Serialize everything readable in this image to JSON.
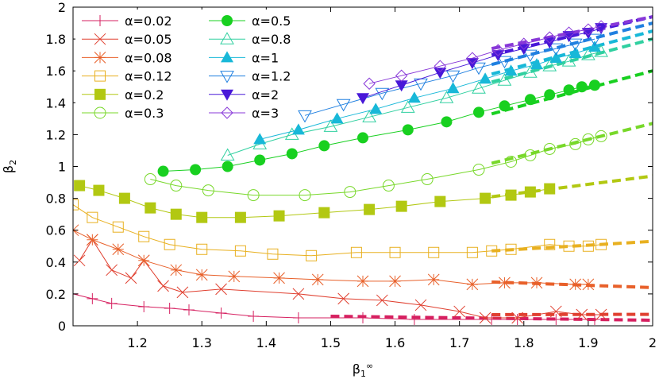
{
  "chart_data": {
    "type": "line",
    "xlabel": "β₁^∞",
    "ylabel": "β₂",
    "xlim": [
      1.1,
      2.0
    ],
    "ylim": [
      0,
      2.0
    ],
    "xticks": [
      1.2,
      1.3,
      1.4,
      1.5,
      1.6,
      1.7,
      1.8,
      1.9,
      2.0
    ],
    "xtick_labels": [
      "1.2",
      "1.3",
      "1.4",
      "1.5",
      "1.6",
      "1.7",
      "1.8",
      "1.9",
      "2"
    ],
    "yticks": [
      0,
      0.2,
      0.4,
      0.6,
      0.8,
      1.0,
      1.2,
      1.4,
      1.6,
      1.8,
      2.0
    ],
    "ytick_labels": [
      "0",
      "0.2",
      "0.4",
      "0.6",
      "0.8",
      "1",
      "1.2",
      "1.4",
      "1.6",
      "1.8",
      "2"
    ],
    "grid": false,
    "legend_position": "top-left, two columns",
    "series": [
      {
        "name": "α=0.02",
        "color": "#d62060",
        "marker": "plus",
        "x": [
          1.1,
          1.13,
          1.16,
          1.21,
          1.25,
          1.28,
          1.33,
          1.38,
          1.45,
          1.55,
          1.63,
          1.75,
          1.79,
          1.85,
          1.91
        ],
        "y": [
          0.2,
          0.17,
          0.14,
          0.12,
          0.11,
          0.1,
          0.08,
          0.06,
          0.05,
          0.05,
          0.04,
          0.04,
          0.04,
          0.04,
          0.04
        ],
        "fit": {
          "x": [
            1.5,
            2.0
          ],
          "y": [
            0.06,
            0.035
          ]
        }
      },
      {
        "name": "α=0.05",
        "color": "#e04030",
        "marker": "x",
        "x": [
          1.11,
          1.13,
          1.16,
          1.19,
          1.21,
          1.24,
          1.27,
          1.33,
          1.45,
          1.52,
          1.58,
          1.64,
          1.7,
          1.74,
          1.79,
          1.85,
          1.89,
          1.92
        ],
        "y": [
          0.41,
          0.54,
          0.35,
          0.3,
          0.41,
          0.25,
          0.21,
          0.23,
          0.2,
          0.17,
          0.16,
          0.13,
          0.09,
          0.05,
          0.05,
          0.09,
          0.07,
          0.07
        ],
        "fit": {
          "x": [
            1.75,
            2.0
          ],
          "y": [
            0.07,
            0.072
          ]
        }
      },
      {
        "name": "α=0.08",
        "color": "#e8602a",
        "marker": "star",
        "x": [
          1.1,
          1.13,
          1.17,
          1.21,
          1.26,
          1.3,
          1.35,
          1.42,
          1.48,
          1.55,
          1.6,
          1.66,
          1.72,
          1.77,
          1.82,
          1.88,
          1.9
        ],
        "y": [
          0.6,
          0.54,
          0.48,
          0.41,
          0.35,
          0.32,
          0.31,
          0.3,
          0.29,
          0.28,
          0.28,
          0.29,
          0.26,
          0.27,
          0.27,
          0.26,
          0.26
        ],
        "fit": {
          "x": [
            1.75,
            2.0
          ],
          "y": [
            0.275,
            0.24
          ]
        }
      },
      {
        "name": "α=0.12",
        "color": "#e8b020",
        "marker": "square-open",
        "x": [
          1.1,
          1.13,
          1.17,
          1.21,
          1.25,
          1.3,
          1.36,
          1.41,
          1.47,
          1.54,
          1.6,
          1.66,
          1.72,
          1.75,
          1.78,
          1.84,
          1.87,
          1.9,
          1.92
        ],
        "y": [
          0.76,
          0.68,
          0.62,
          0.56,
          0.51,
          0.48,
          0.47,
          0.45,
          0.44,
          0.46,
          0.46,
          0.46,
          0.46,
          0.47,
          0.48,
          0.51,
          0.5,
          0.5,
          0.51
        ],
        "fit": {
          "x": [
            1.75,
            2.0
          ],
          "y": [
            0.47,
            0.53
          ]
        }
      },
      {
        "name": "α=0.2",
        "color": "#b2c812",
        "marker": "square-filled",
        "x": [
          1.11,
          1.14,
          1.18,
          1.22,
          1.26,
          1.3,
          1.36,
          1.42,
          1.49,
          1.56,
          1.61,
          1.67,
          1.74,
          1.78,
          1.81,
          1.84
        ],
        "y": [
          0.88,
          0.85,
          0.8,
          0.74,
          0.7,
          0.68,
          0.68,
          0.69,
          0.71,
          0.73,
          0.75,
          0.78,
          0.8,
          0.82,
          0.84,
          0.86
        ],
        "fit": {
          "x": [
            1.75,
            2.0
          ],
          "y": [
            0.81,
            0.94
          ]
        }
      },
      {
        "name": "α=0.3",
        "color": "#78d82a",
        "marker": "circle-open",
        "x": [
          1.22,
          1.26,
          1.31,
          1.38,
          1.46,
          1.53,
          1.59,
          1.65,
          1.73,
          1.78,
          1.81,
          1.84,
          1.88,
          1.9,
          1.92
        ],
        "y": [
          0.92,
          0.88,
          0.85,
          0.82,
          0.82,
          0.84,
          0.88,
          0.92,
          0.98,
          1.03,
          1.07,
          1.11,
          1.14,
          1.17,
          1.19
        ],
        "fit": {
          "x": [
            1.75,
            2.0
          ],
          "y": [
            1.02,
            1.27
          ]
        }
      },
      {
        "name": "α=0.5",
        "color": "#18d020",
        "marker": "circle-filled",
        "x": [
          1.24,
          1.29,
          1.34,
          1.39,
          1.44,
          1.49,
          1.55,
          1.62,
          1.68,
          1.73,
          1.77,
          1.81,
          1.84,
          1.87,
          1.89,
          1.91
        ],
        "y": [
          0.97,
          0.98,
          1.0,
          1.04,
          1.08,
          1.13,
          1.18,
          1.23,
          1.28,
          1.34,
          1.38,
          1.42,
          1.45,
          1.48,
          1.5,
          1.51
        ],
        "fit": {
          "x": [
            1.75,
            2.0
          ],
          "y": [
            1.33,
            1.6
          ]
        }
      },
      {
        "name": "α=0.8",
        "color": "#30d0a0",
        "marker": "triangle-open",
        "x": [
          1.34,
          1.39,
          1.44,
          1.5,
          1.56,
          1.62,
          1.68,
          1.73,
          1.77,
          1.81,
          1.84,
          1.87,
          1.9,
          1.92
        ],
        "y": [
          1.07,
          1.14,
          1.2,
          1.25,
          1.31,
          1.37,
          1.43,
          1.49,
          1.54,
          1.59,
          1.63,
          1.66,
          1.7,
          1.72
        ],
        "fit": {
          "x": [
            1.75,
            2.0
          ],
          "y": [
            1.53,
            1.8
          ]
        }
      },
      {
        "name": "α=1",
        "color": "#18b8d8",
        "marker": "triangle-filled",
        "x": [
          1.39,
          1.45,
          1.51,
          1.57,
          1.63,
          1.69,
          1.74,
          1.78,
          1.82,
          1.85,
          1.88,
          1.91
        ],
        "y": [
          1.17,
          1.23,
          1.3,
          1.36,
          1.43,
          1.49,
          1.55,
          1.6,
          1.64,
          1.68,
          1.71,
          1.75
        ],
        "fit": {
          "x": [
            1.75,
            2.0
          ],
          "y": [
            1.58,
            1.85
          ]
        }
      },
      {
        "name": "α=1.2",
        "color": "#2080e0",
        "marker": "triangle-down-open",
        "x": [
          1.46,
          1.52,
          1.58,
          1.64,
          1.69,
          1.73,
          1.77,
          1.81,
          1.85,
          1.88,
          1.91
        ],
        "y": [
          1.32,
          1.39,
          1.46,
          1.52,
          1.57,
          1.62,
          1.66,
          1.7,
          1.74,
          1.77,
          1.8
        ],
        "fit": {
          "x": [
            1.75,
            2.0
          ],
          "y": [
            1.64,
            1.9
          ]
        }
      },
      {
        "name": "α=2",
        "color": "#4818d8",
        "marker": "triangle-down-filled",
        "x": [
          1.55,
          1.61,
          1.67,
          1.72,
          1.76,
          1.8,
          1.84,
          1.87,
          1.9,
          1.92
        ],
        "y": [
          1.43,
          1.51,
          1.59,
          1.65,
          1.7,
          1.74,
          1.78,
          1.82,
          1.84,
          1.87
        ],
        "fit": {
          "x": [
            1.75,
            2.0
          ],
          "y": [
            1.7,
            1.94
          ]
        }
      },
      {
        "name": "α=3",
        "color": "#8838d8",
        "marker": "diamond-open",
        "x": [
          1.56,
          1.61,
          1.67,
          1.72,
          1.76,
          1.8,
          1.84,
          1.87,
          1.9,
          1.92
        ],
        "y": [
          1.52,
          1.57,
          1.63,
          1.68,
          1.73,
          1.77,
          1.81,
          1.84,
          1.86,
          1.88
        ],
        "fit": {
          "x": [
            1.75,
            2.0
          ],
          "y": [
            1.74,
            1.94
          ]
        }
      }
    ]
  }
}
